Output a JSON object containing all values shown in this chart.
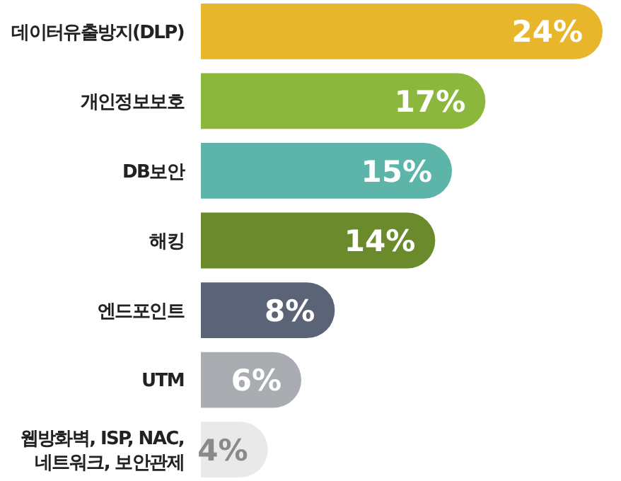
{
  "chart_data": {
    "type": "bar",
    "orientation": "horizontal",
    "categories": [
      "데이터유출방지(DLP)",
      "개인정보보호",
      "DB보안",
      "해킹",
      "엔드포인트",
      "UTM",
      "웹방화벽, ISP, NAC,\n네트워크, 보안관제"
    ],
    "values": [
      24,
      17,
      15,
      14,
      8,
      6,
      4
    ],
    "colors": [
      "#e8b62a",
      "#8bb83c",
      "#5db5a9",
      "#6a8a2b",
      "#5b6477",
      "#a9adb1",
      "#e9e9e9"
    ],
    "value_labels": [
      "24%",
      "17%",
      "15%",
      "14%",
      "8%",
      "6%",
      "4%"
    ]
  }
}
